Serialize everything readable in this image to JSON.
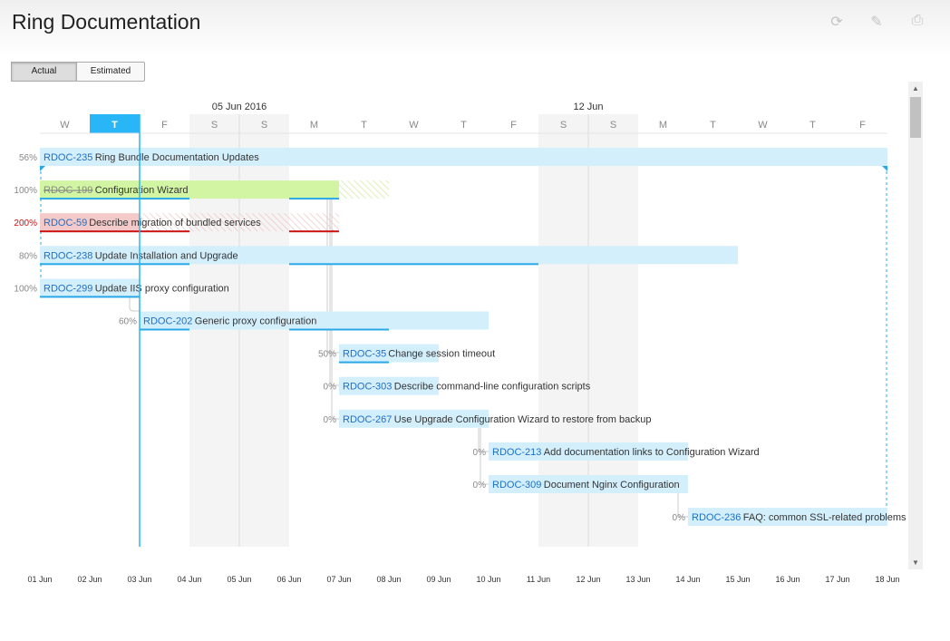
{
  "page": {
    "title": "Ring Documentation"
  },
  "toolbar": {
    "icons": [
      "refresh-icon",
      "edit-icon",
      "print-icon"
    ],
    "refresh": "⟳",
    "edit": "✎",
    "print": "⎙"
  },
  "view_toggle": {
    "actual": "Actual",
    "estimated": "Estimated",
    "selected": "Actual"
  },
  "colors": {
    "bar": "#d4effc",
    "done": "#d2f5a4",
    "overdue": "#f4c9c9",
    "progress": "#29a8e8",
    "overdue_progress": "#cc1111",
    "id": "#1d6fc6",
    "today": "#29b6f6",
    "weekend": "#f4f4f4"
  },
  "timeline": {
    "week_labels": [
      {
        "date": "2016-06-05",
        "label": "05 Jun 2016"
      },
      {
        "date": "2016-06-12",
        "label": "12 Jun"
      }
    ],
    "day_letters": [
      "W",
      "T",
      "F",
      "S",
      "S",
      "M",
      "T",
      "W",
      "T",
      "F",
      "S",
      "S",
      "M",
      "T",
      "W",
      "T",
      "F"
    ],
    "today": "2016-06-02",
    "axis_labels": [
      "01 Jun",
      "02 Jun",
      "03 Jun",
      "04 Jun",
      "05 Jun",
      "06 Jun",
      "07 Jun",
      "08 Jun",
      "09 Jun",
      "10 Jun",
      "11 Jun",
      "12 Jun",
      "13 Jun",
      "14 Jun",
      "15 Jun",
      "16 Jun",
      "17 Jun",
      "18 Jun"
    ]
  },
  "tasks": [
    {
      "id": "RDOC-235",
      "title": "Ring Bundle Documentation Updates",
      "progress": "56%",
      "start": "2016-06-01",
      "end": "2016-06-17",
      "parent": true
    },
    {
      "id": "RDOC-199",
      "title": "Configuration Wizard",
      "progress": "100%",
      "start": "2016-06-01",
      "end": "2016-06-06",
      "resolved": true,
      "hatch_end": "2016-06-07"
    },
    {
      "id": "RDOC-59",
      "title": "Describe migration of bundled services",
      "progress": "200%",
      "start": "2016-06-01",
      "end": "2016-06-02",
      "overdue": true,
      "hatch_end": "2016-06-06"
    },
    {
      "id": "RDOC-238",
      "title": "Update Installation and Upgrade",
      "progress": "80%",
      "start": "2016-06-01",
      "end": "2016-06-14"
    },
    {
      "id": "RDOC-299",
      "title": "Update IIS proxy configuration",
      "progress": "100%",
      "start": "2016-06-01",
      "end": "2016-06-02"
    },
    {
      "id": "RDOC-202",
      "title": "Generic proxy configuration",
      "progress": "60%",
      "start": "2016-06-03",
      "end": "2016-06-09"
    },
    {
      "id": "RDOC-35",
      "title": "Change session timeout",
      "progress": "50%",
      "start": "2016-06-07",
      "end": "2016-06-08"
    },
    {
      "id": "RDOC-303",
      "title": "Describe command-line configuration scripts",
      "progress": "0%",
      "start": "2016-06-07",
      "end": "2016-06-08"
    },
    {
      "id": "RDOC-267",
      "title": "Use Upgrade Configuration Wizard to restore from backup",
      "progress": "0%",
      "start": "2016-06-07",
      "end": "2016-06-09"
    },
    {
      "id": "RDOC-213",
      "title": "Add documentation links to Configuration Wizard",
      "progress": "0%",
      "start": "2016-06-10",
      "end": "2016-06-13"
    },
    {
      "id": "RDOC-309",
      "title": "Document Nginx Configuration",
      "progress": "0%",
      "start": "2016-06-10",
      "end": "2016-06-13"
    },
    {
      "id": "RDOC-236",
      "title": "FAQ: common SSL-related problems",
      "progress": "0%",
      "start": "2016-06-14",
      "end": "2016-06-17"
    }
  ]
}
